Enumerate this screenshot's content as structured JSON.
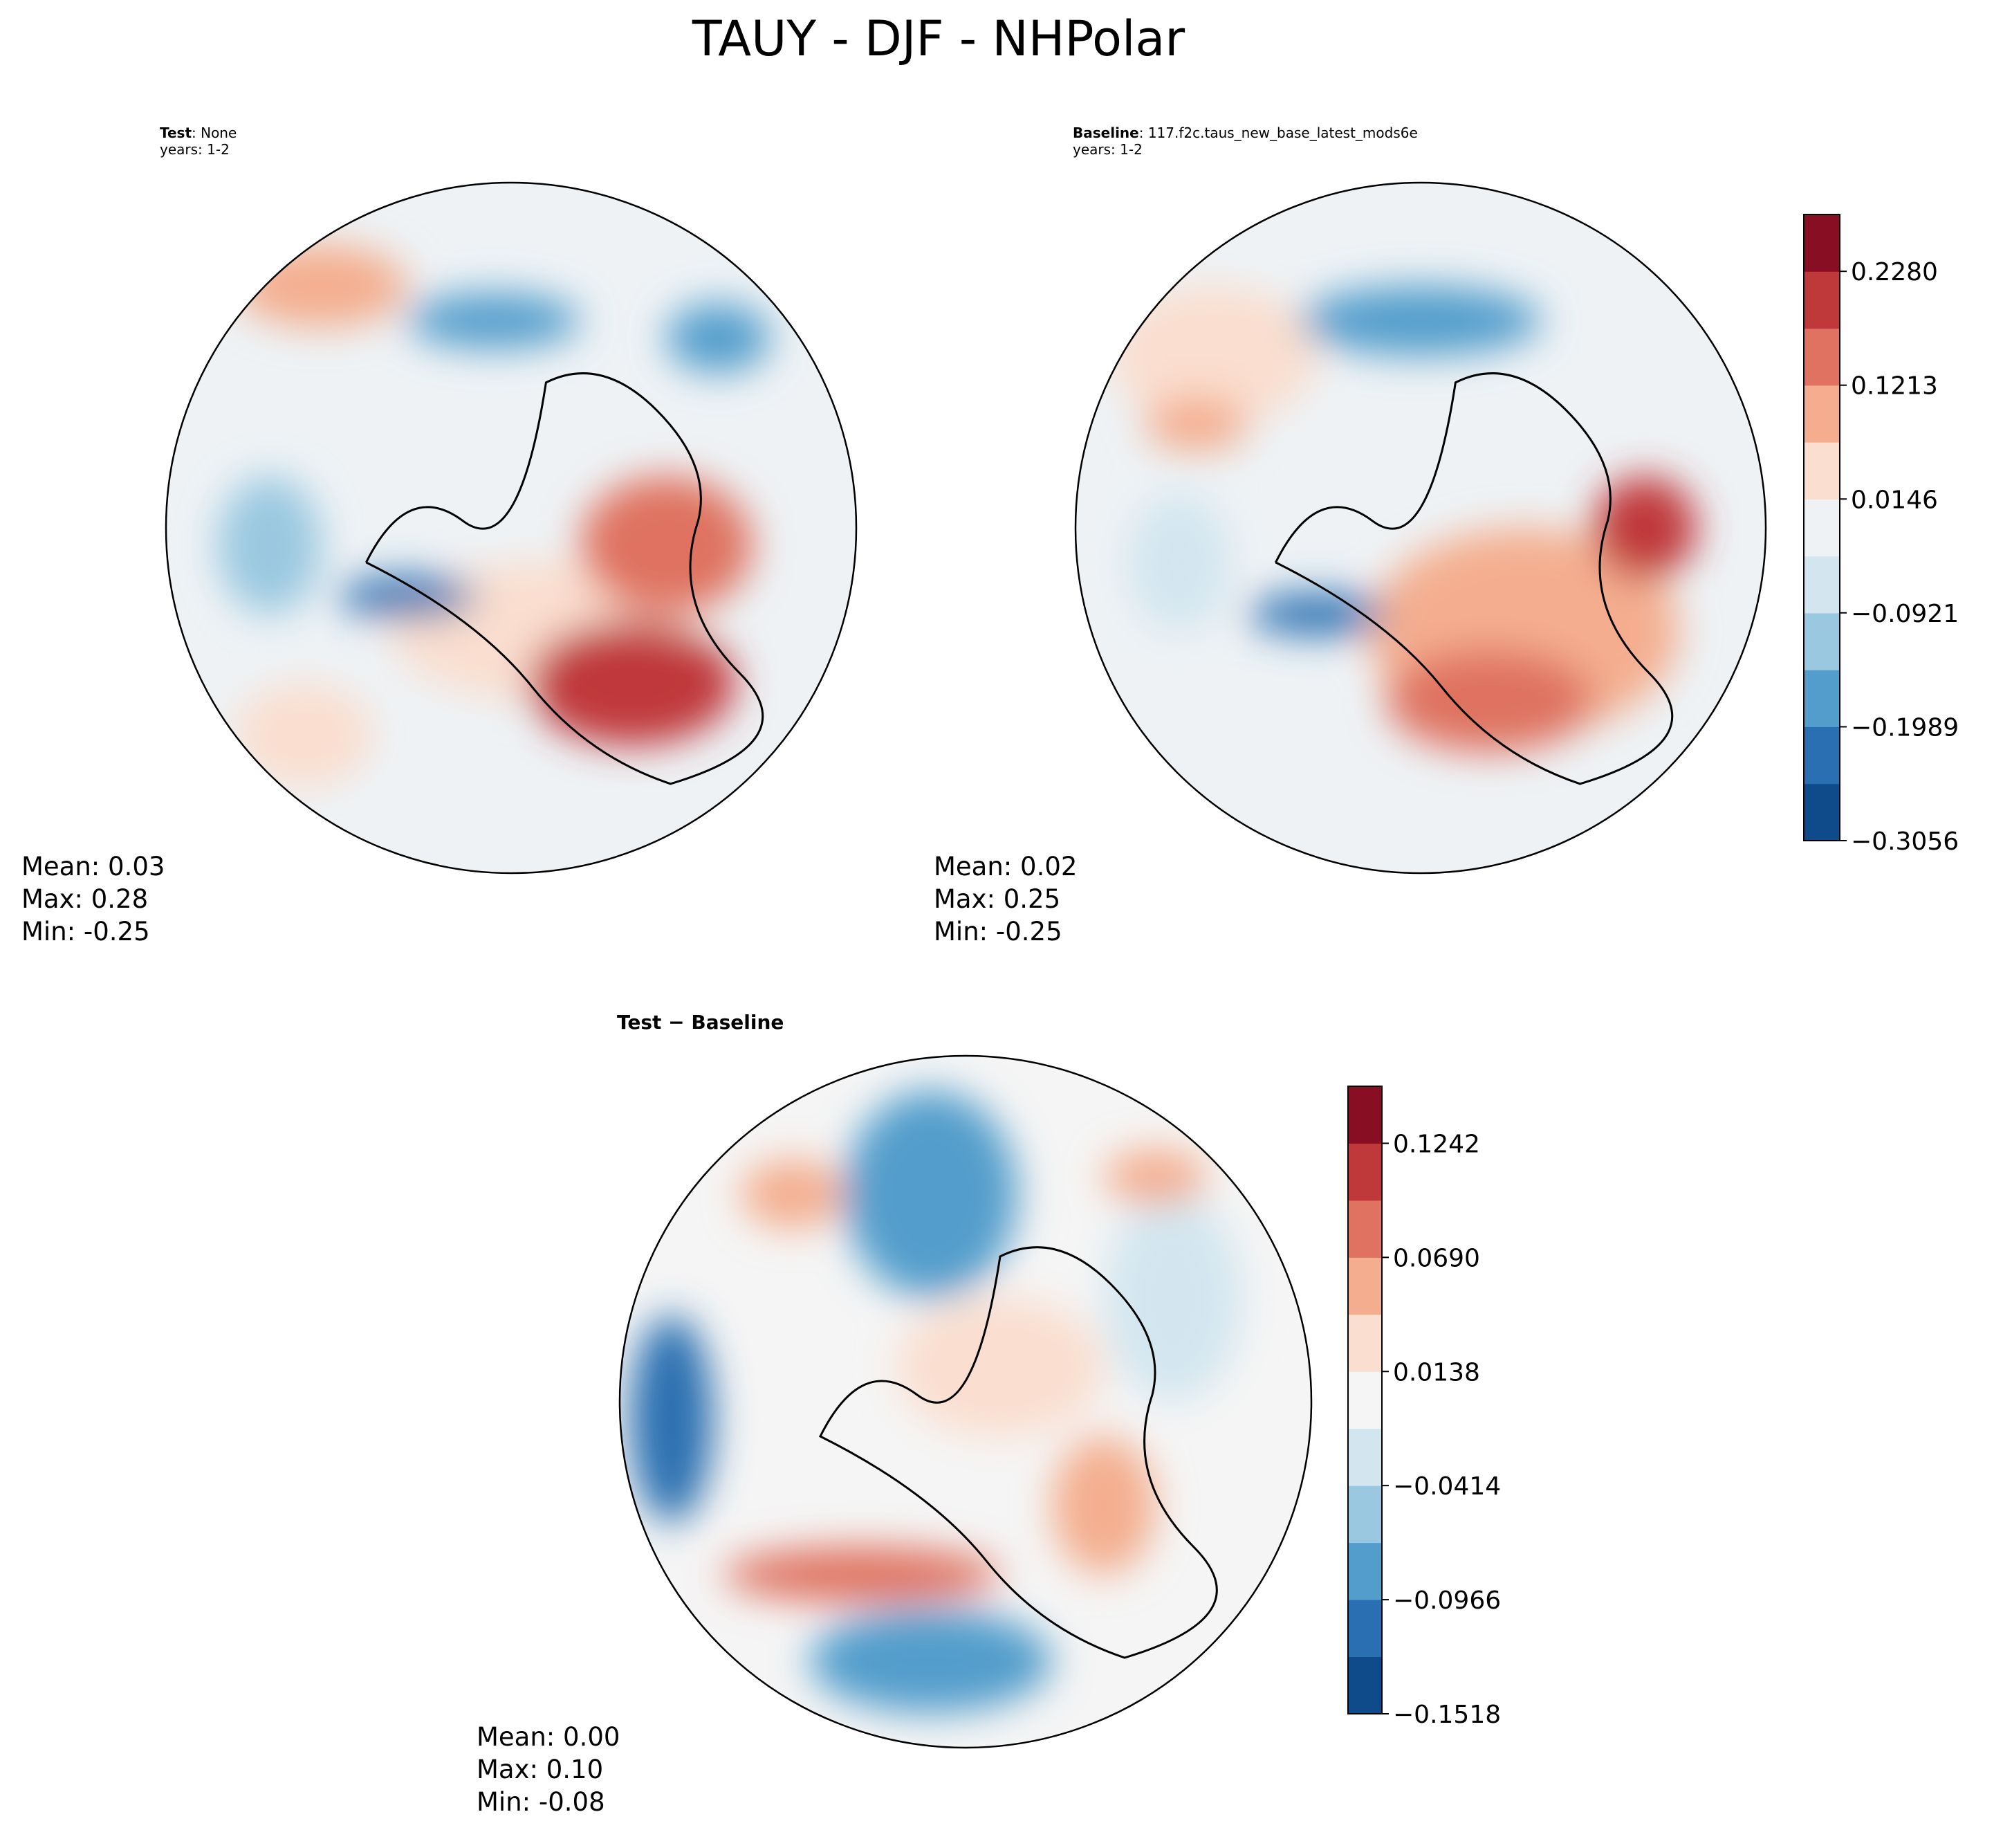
{
  "title": "TAUY - DJF - NHPolar",
  "panels": [
    {
      "label": "Test",
      "name": ": None",
      "years": "years: 1-2",
      "stats": [
        "Mean:  0.03",
        "Max:  0.28",
        "Min: -0.25"
      ]
    },
    {
      "label": "Baseline",
      "name": ": 117.f2c.taus_new_base_latest_mods6e",
      "years": "years: 1-2",
      "stats": [
        "Mean:  0.02",
        "Max:  0.25",
        "Min: -0.25"
      ]
    },
    {
      "label": "Test − Baseline",
      "stats": [
        "Mean:  0.00",
        "Max:  0.10",
        "Min: -0.08"
      ]
    }
  ],
  "colorbars": [
    {
      "lim": [
        -0.3056,
        0.2813
      ],
      "ticks": [
        {
          "value": -0.3056,
          "label": "−0.3056"
        },
        {
          "value": -0.1989,
          "label": "−0.1989"
        },
        {
          "value": -0.0921,
          "label": "−0.0921"
        },
        {
          "value": 0.0146,
          "label": "0.0146"
        },
        {
          "value": 0.1213,
          "label": "0.1213"
        },
        {
          "value": 0.228,
          "label": "0.2280"
        }
      ],
      "colors": [
        "#0f4b8a",
        "#2a6fb1",
        "#529dcc",
        "#9ac8e0",
        "#d3e6f0",
        "#eef2f5",
        "#fadecf",
        "#f4ae8f",
        "#df7260",
        "#c0393a",
        "#880f23"
      ]
    },
    {
      "lim": [
        -0.1518,
        0.1518
      ],
      "ticks": [
        {
          "value": -0.1518,
          "label": "−0.1518"
        },
        {
          "value": -0.0966,
          "label": "−0.0966"
        },
        {
          "value": -0.0414,
          "label": "−0.0414"
        },
        {
          "value": 0.0138,
          "label": "0.0138"
        },
        {
          "value": 0.069,
          "label": "0.0690"
        },
        {
          "value": 0.1242,
          "label": "0.1242"
        }
      ],
      "colors": [
        "#0f4b8a",
        "#2a6fb1",
        "#529dcc",
        "#9ac8e0",
        "#d3e6f0",
        "#f5f5f5",
        "#fadecf",
        "#f4ae8f",
        "#df7260",
        "#c0393a",
        "#880f23"
      ]
    }
  ]
}
